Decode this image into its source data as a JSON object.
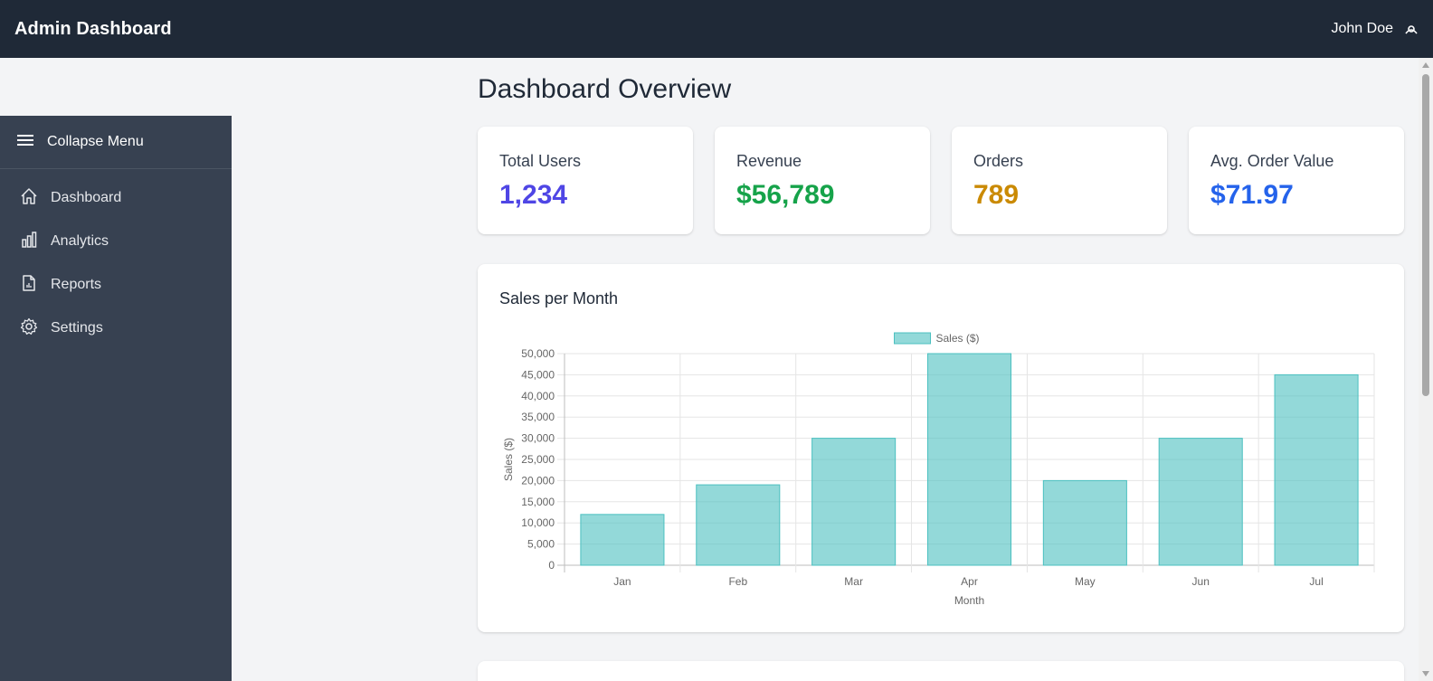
{
  "header": {
    "title": "Admin Dashboard",
    "user_name": "John Doe",
    "user_icon": "user-menu-icon"
  },
  "sidebar": {
    "collapse_label": "Collapse Menu",
    "items": [
      {
        "label": "Dashboard",
        "icon": "home-icon"
      },
      {
        "label": "Analytics",
        "icon": "bar-chart-icon"
      },
      {
        "label": "Reports",
        "icon": "report-document-icon"
      },
      {
        "label": "Settings",
        "icon": "gear-icon"
      }
    ]
  },
  "main": {
    "title": "Dashboard Overview",
    "stats": [
      {
        "label": "Total Users",
        "value": "1,234",
        "color": "#4f46e5"
      },
      {
        "label": "Revenue",
        "value": "$56,789",
        "color": "#16a34a"
      },
      {
        "label": "Orders",
        "value": "789",
        "color": "#ca8a04"
      },
      {
        "label": "Avg. Order Value",
        "value": "$71.97",
        "color": "#2563eb"
      }
    ]
  },
  "chart_card": {
    "title": "Sales per Month"
  },
  "chart_data": {
    "type": "bar",
    "title": "",
    "categories": [
      "Jan",
      "Feb",
      "Mar",
      "Apr",
      "May",
      "Jun",
      "Jul"
    ],
    "series": [
      {
        "name": "Sales ($)",
        "values": [
          12000,
          19000,
          30000,
          50000,
          20000,
          30000,
          45000
        ],
        "color": "#4bc0c0"
      }
    ],
    "xlabel": "Month",
    "ylabel": "Sales ($)",
    "ylim": [
      0,
      50000
    ],
    "yticks": [
      "0",
      "5,000",
      "10,000",
      "15,000",
      "20,000",
      "25,000",
      "30,000",
      "35,000",
      "40,000",
      "45,000",
      "50,000"
    ],
    "grid": true,
    "legend": "top"
  }
}
